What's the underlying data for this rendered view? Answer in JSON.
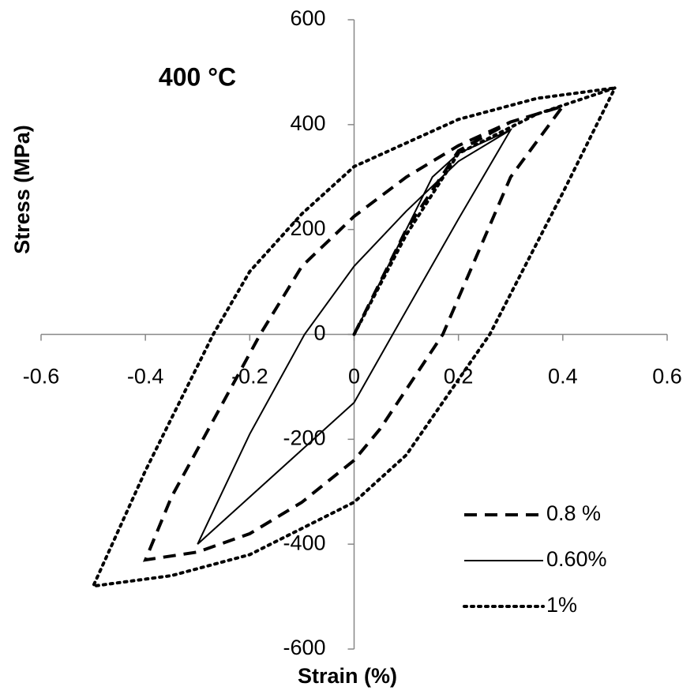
{
  "chart_data": {
    "type": "line",
    "title": "400 °C",
    "x_label": "Strain (%)",
    "y_label": "Stress (MPa)",
    "xlim": [
      -0.6,
      0.6
    ],
    "xticks": [
      -0.6,
      -0.4,
      -0.2,
      0,
      0.2,
      0.4,
      0.6
    ],
    "ylim": [
      -600,
      600
    ],
    "yticks": [
      -600,
      -400,
      -200,
      0,
      200,
      400,
      600
    ],
    "legend": "lower right",
    "series": [
      {
        "name": "0.8 %",
        "color": "#000000",
        "style": "dashed",
        "x": [
          0,
          0.1,
          0.2,
          0.3,
          0.4,
          0.3,
          0.17,
          0.05,
          0,
          -0.1,
          -0.2,
          -0.3,
          -0.4,
          -0.35,
          -0.18,
          -0.1,
          0,
          0.1,
          0.2,
          0.3,
          0.4
        ],
        "values": [
          0,
          200,
          350,
          405,
          435,
          300,
          0,
          -180,
          -240,
          -320,
          -380,
          -415,
          -430,
          -310,
          0,
          130,
          225,
          300,
          360,
          405,
          435
        ]
      },
      {
        "name": "0.60%",
        "color": "#000000",
        "style": "solid",
        "x": [
          0,
          0.1,
          0.15,
          0.2,
          0.3,
          0.2,
          0.074,
          0,
          -0.1,
          -0.2,
          -0.3,
          -0.2,
          -0.095,
          0,
          0.1,
          0.2,
          0.3
        ],
        "values": [
          0,
          200,
          300,
          345,
          390,
          220,
          0,
          -130,
          -220,
          -310,
          -400,
          -190,
          0,
          130,
          235,
          330,
          390
        ]
      },
      {
        "name": "1%",
        "color": "#000000",
        "style": "dotted",
        "x": [
          0,
          0.1,
          0.2,
          0.35,
          0.5,
          0.4,
          0.26,
          0.1,
          0,
          -0.2,
          -0.35,
          -0.5,
          -0.4,
          -0.27,
          -0.2,
          -0.1,
          0,
          0.2,
          0.35,
          0.5
        ],
        "values": [
          0,
          190,
          345,
          420,
          470,
          270,
          0,
          -230,
          -320,
          -420,
          -460,
          -480,
          -260,
          0,
          120,
          230,
          320,
          410,
          450,
          470
        ]
      }
    ]
  }
}
